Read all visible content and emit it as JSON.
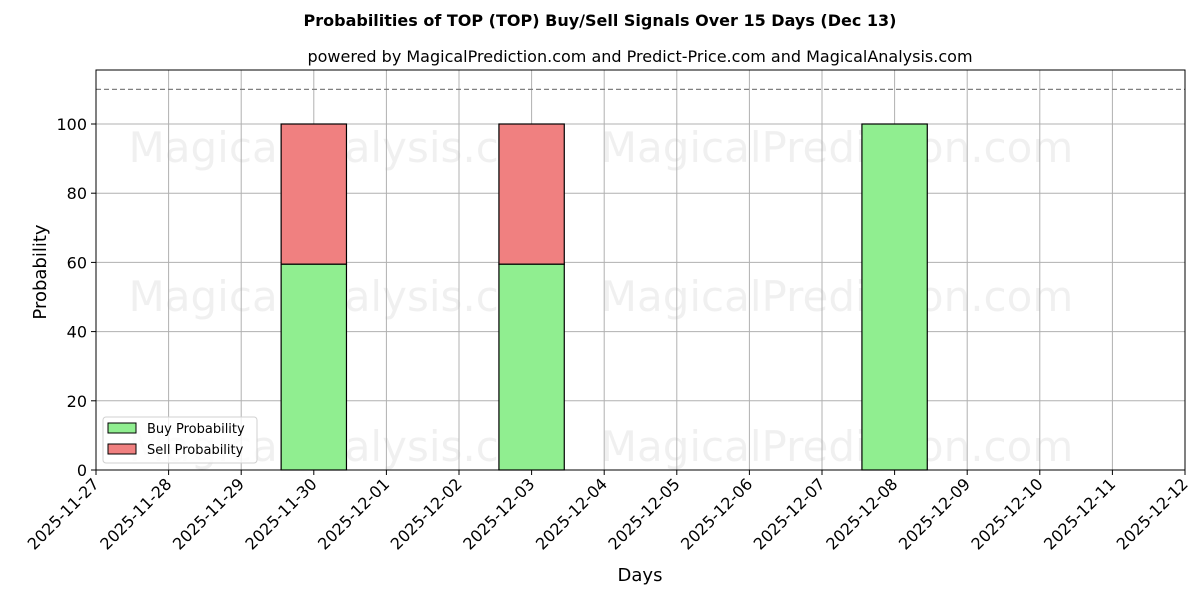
{
  "chart_data": {
    "type": "bar",
    "stacked": true,
    "title": "Probabilities of TOP (TOP) Buy/Sell Signals Over 15 Days (Dec 13)",
    "subtitle": "powered by MagicalPrediction.com and Predict-Price.com and MagicalAnalysis.com",
    "xlabel": "Days",
    "ylabel": "Probability",
    "ylim": [
      0,
      115
    ],
    "yticks": [
      0,
      20,
      40,
      60,
      80,
      100
    ],
    "xticks": [
      "2025-11-27",
      "2025-11-28",
      "2025-11-29",
      "2025-11-30",
      "2025-12-01",
      "2025-12-02",
      "2025-12-03",
      "2025-12-04",
      "2025-12-05",
      "2025-12-06",
      "2025-12-07",
      "2025-12-08",
      "2025-12-09",
      "2025-12-10",
      "2025-12-11",
      "2025-12-12"
    ],
    "categories": [
      "2025-11-30",
      "2025-12-03",
      "2025-12-08"
    ],
    "series": [
      {
        "name": "Buy Probability",
        "color": "#90ee90",
        "values": [
          59.5,
          59.5,
          100
        ]
      },
      {
        "name": "Sell Probability",
        "color": "#f08080",
        "values": [
          40.5,
          40.5,
          0
        ]
      }
    ],
    "reference_line": {
      "y": 110,
      "style": "dashed",
      "color": "#808080"
    },
    "grid": true,
    "legend_position": "lower left",
    "watermarks": [
      "MagicalAnalysis.com",
      "MagicalPrediction.com"
    ]
  }
}
